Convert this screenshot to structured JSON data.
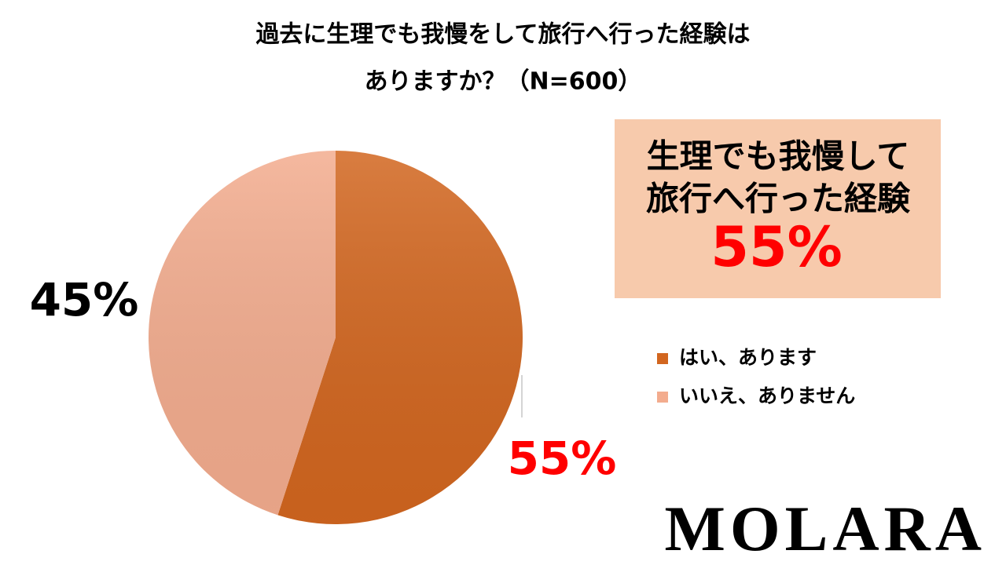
{
  "chart_data": {
    "type": "pie",
    "title_lines": [
      "過去に生理でも我慢をして旅行へ行った経験は",
      "ありますか？（N=600）"
    ],
    "categories": [
      "はい、あります",
      "いいえ、ありません"
    ],
    "values": [
      55,
      45
    ],
    "value_labels": [
      "55%",
      "45%"
    ],
    "colors": [
      "#D2661F",
      "#F3AC8E"
    ],
    "label_colors": [
      "#FF0000",
      "#000000"
    ],
    "legend": "right",
    "callout_lines": [
      "生理でも我慢して",
      "旅行へ行った経験"
    ]
  },
  "brand": "MOLARA"
}
